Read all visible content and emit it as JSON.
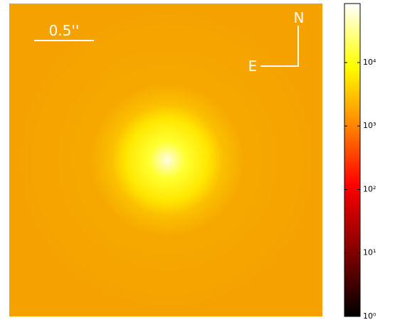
{
  "chart_data": {
    "type": "image",
    "scale_label": "0.5''",
    "north_label": "N",
    "east_label": "E",
    "colorbar": {
      "scale": "log",
      "ylim": [
        1,
        85000
      ],
      "yticks": [
        {
          "value": 1,
          "label": "10⁰"
        },
        {
          "value": 10,
          "label": "10¹"
        },
        {
          "value": 100,
          "label": "10²"
        },
        {
          "value": 1000,
          "label": "10³"
        },
        {
          "value": 10000,
          "label": "10⁴"
        }
      ]
    }
  }
}
